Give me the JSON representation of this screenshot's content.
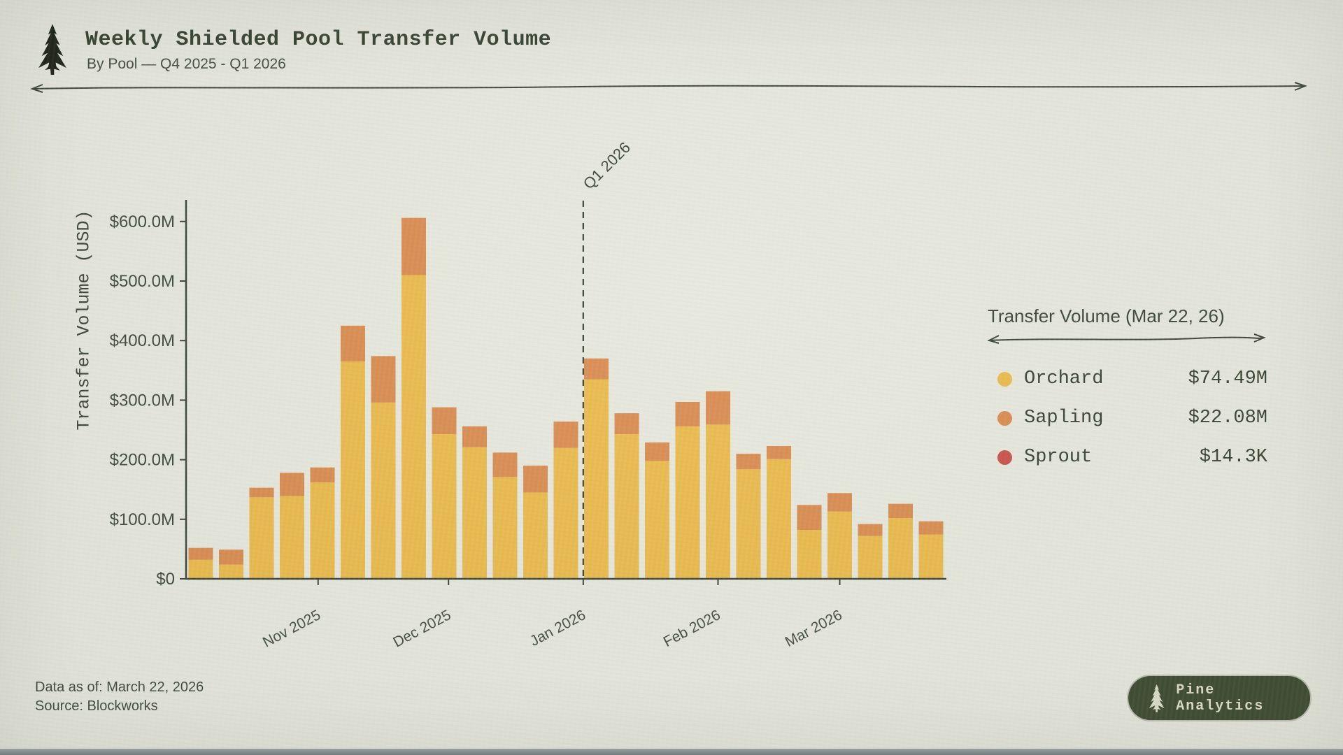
{
  "header": {
    "title": "Weekly Shielded Pool Transfer Volume",
    "subtitle": "By Pool — Q4 2025 - Q1 2026"
  },
  "colors": {
    "background": "#e6e7dd",
    "ink": "#3a4537",
    "orchard": "#eaba4c",
    "sapling": "#d98c50",
    "sprout": "#c8524a",
    "badge_bg": "#3e4a31",
    "badge_text": "#dcdcca"
  },
  "legend": {
    "title": "Transfer Volume (Mar 22, 26)",
    "items": [
      {
        "label": "Orchard",
        "value": "$74.49M",
        "color": "#eaba4c"
      },
      {
        "label": "Sapling",
        "value": "$22.08M",
        "color": "#d98c50"
      },
      {
        "label": "Sprout",
        "value": "$14.3K",
        "color": "#c8524a"
      }
    ]
  },
  "footer": {
    "line1": "Data as of: March 22, 2026",
    "line2": "Source: Blockworks"
  },
  "badge": {
    "label": "Pine Analytics"
  },
  "chart_data": {
    "type": "bar",
    "stacked": true,
    "title": "Weekly Shielded Pool Transfer Volume",
    "xlabel": "",
    "ylabel": "Transfer Volume (USD)",
    "ylim_M": [
      0,
      636
    ],
    "grid": false,
    "legend_position": "right",
    "y_ticks": [
      "$0",
      "$100.0M",
      "$200.0M",
      "$300.0M",
      "$400.0M",
      "$500.0M",
      "$600.0M"
    ],
    "x_month_ticks": [
      {
        "label": "Nov 2025",
        "date": "2025-11-01"
      },
      {
        "label": "Dec 2025",
        "date": "2025-12-01"
      },
      {
        "label": "Jan 2026",
        "date": "2026-01-01"
      },
      {
        "label": "Feb 2026",
        "date": "2026-02-01"
      },
      {
        "label": "Mar 2026",
        "date": "2026-03-01"
      }
    ],
    "annotation": {
      "label": "Q1 2026",
      "date": "2026-01-01"
    },
    "weeks": [
      "2025-10-05",
      "2025-10-12",
      "2025-10-19",
      "2025-10-26",
      "2025-11-02",
      "2025-11-09",
      "2025-11-16",
      "2025-11-23",
      "2025-11-30",
      "2025-12-07",
      "2025-12-14",
      "2025-12-21",
      "2025-12-28",
      "2026-01-04",
      "2026-01-11",
      "2026-01-18",
      "2026-01-25",
      "2026-02-01",
      "2026-02-08",
      "2026-02-15",
      "2026-02-22",
      "2026-03-01",
      "2026-03-08",
      "2026-03-15",
      "2026-03-22"
    ],
    "series": [
      {
        "name": "Orchard",
        "color": "#eaba4c",
        "values_M": [
          32,
          24,
          137,
          139,
          162,
          365,
          296,
          510,
          243,
          221,
          171,
          145,
          220,
          335,
          243,
          198,
          256,
          259,
          184,
          201,
          82,
          113,
          72,
          102,
          74.49
        ]
      },
      {
        "name": "Sapling",
        "color": "#d98c50",
        "values_M": [
          20,
          25,
          16,
          39,
          25,
          60,
          78,
          96,
          45,
          35,
          41,
          45,
          44,
          35,
          35,
          31,
          41,
          56,
          26,
          22,
          42,
          31,
          20,
          24,
          22.08
        ]
      },
      {
        "name": "Sprout",
        "color": "#c8524a",
        "values_M": [
          0,
          0,
          0,
          0,
          0,
          0,
          0,
          0,
          0,
          0,
          0,
          0,
          0,
          0,
          0,
          0,
          0,
          0,
          0,
          0,
          0,
          0,
          0,
          0,
          0.0143
        ]
      }
    ]
  }
}
